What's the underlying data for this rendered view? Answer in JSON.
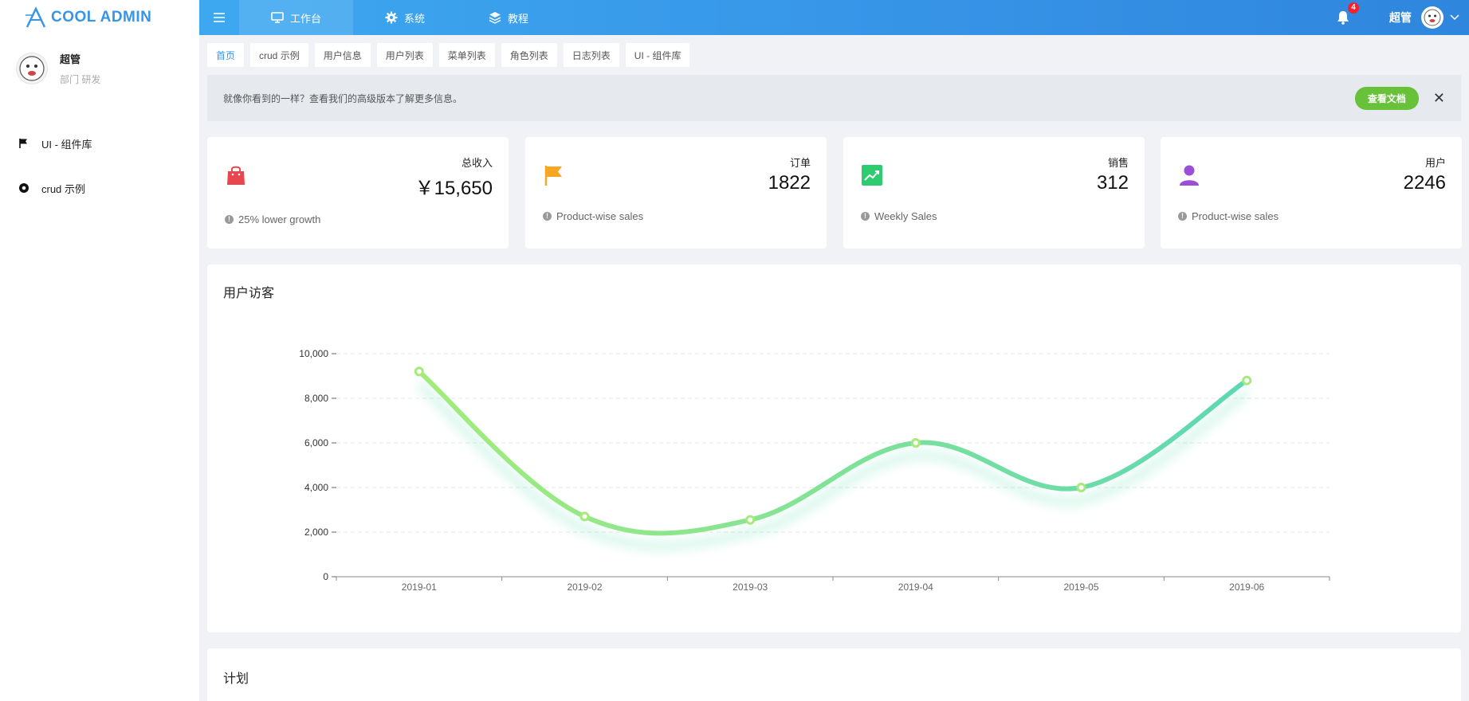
{
  "logo": {
    "text": "COOL ADMIN"
  },
  "user": {
    "name": "超管",
    "dept": "部门 研发"
  },
  "menu": [
    {
      "label": "UI - 组件库",
      "icon": "flag-icon"
    },
    {
      "label": "crud 示例",
      "icon": "circle-icon"
    }
  ],
  "header": {
    "tabs": [
      {
        "label": "工作台",
        "icon": "monitor-icon",
        "active": true
      },
      {
        "label": "系统",
        "icon": "gear-icon"
      },
      {
        "label": "教程",
        "icon": "layers-icon"
      }
    ],
    "notification_count": "4",
    "username": "超管"
  },
  "page_tabs": [
    "首页",
    "crud 示例",
    "用户信息",
    "用户列表",
    "菜单列表",
    "角色列表",
    "日志列表",
    "UI - 组件库"
  ],
  "alert": {
    "text": "就像你看到的一样？查看我们的高级版本了解更多信息。",
    "button": "查看文档",
    "close": "✕"
  },
  "stats": [
    {
      "label": "总收入",
      "value": "￥15,650",
      "footer": "25% lower growth",
      "icon": "shopping-bag-icon",
      "color": "#e8474e"
    },
    {
      "label": "订单",
      "value": "1822",
      "footer": "Product-wise sales",
      "icon": "flag-icon",
      "color": "#f5a623"
    },
    {
      "label": "销售",
      "value": "312",
      "footer": "Weekly Sales",
      "icon": "trending-up-icon",
      "color": "#2ecc71"
    },
    {
      "label": "用户",
      "value": "2246",
      "footer": "Product-wise sales",
      "icon": "user-icon",
      "color": "#9b4fd6"
    }
  ],
  "chart_panel": {
    "title": "用户访客"
  },
  "plan_panel": {
    "title": "计划"
  },
  "chart_data": {
    "type": "line",
    "categories": [
      "2019-01",
      "2019-02",
      "2019-03",
      "2019-04",
      "2019-05",
      "2019-06"
    ],
    "series": [
      {
        "values": [
          9200,
          2700,
          2550,
          6000,
          4000,
          8800
        ]
      }
    ],
    "yticks": [
      "0",
      "2,000",
      "4,000",
      "6,000",
      "8,000",
      "10,000"
    ],
    "ylim": [
      0,
      10000
    ],
    "smooth": true,
    "grid": true,
    "color_start": "#a3ec7a",
    "color_end": "#5dd8b4"
  }
}
